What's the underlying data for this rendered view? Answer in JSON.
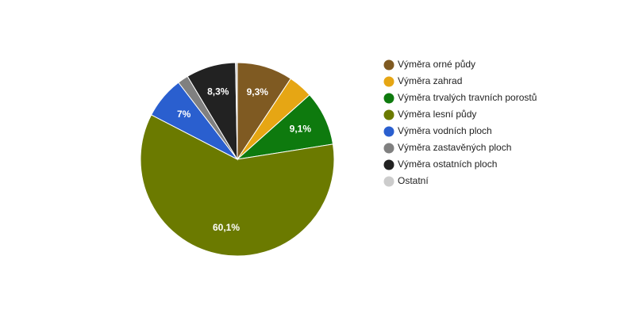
{
  "chart_data": {
    "type": "pie",
    "categories": [
      "Výměra orné půdy",
      "Výměra zahrad",
      "Výměra trvalých travních porostů",
      "Výměra lesní půdy",
      "Výměra vodních ploch",
      "Výměra zastavěných ploch",
      "Výměra ostatních ploch",
      "Ostatní"
    ],
    "values": [
      9.3,
      4.1,
      9.1,
      60.1,
      7,
      1.8,
      8.3,
      0.3
    ],
    "value_labels": [
      "9,3%",
      null,
      "9,1%",
      "60,1%",
      "7%",
      null,
      "8,3%",
      null
    ],
    "colors": [
      "#7f5a22",
      "#e6a614",
      "#0e7a0e",
      "#6b7a00",
      "#2a5fcf",
      "#808080",
      "#222222",
      "#cccccc"
    ],
    "legend": "right"
  }
}
